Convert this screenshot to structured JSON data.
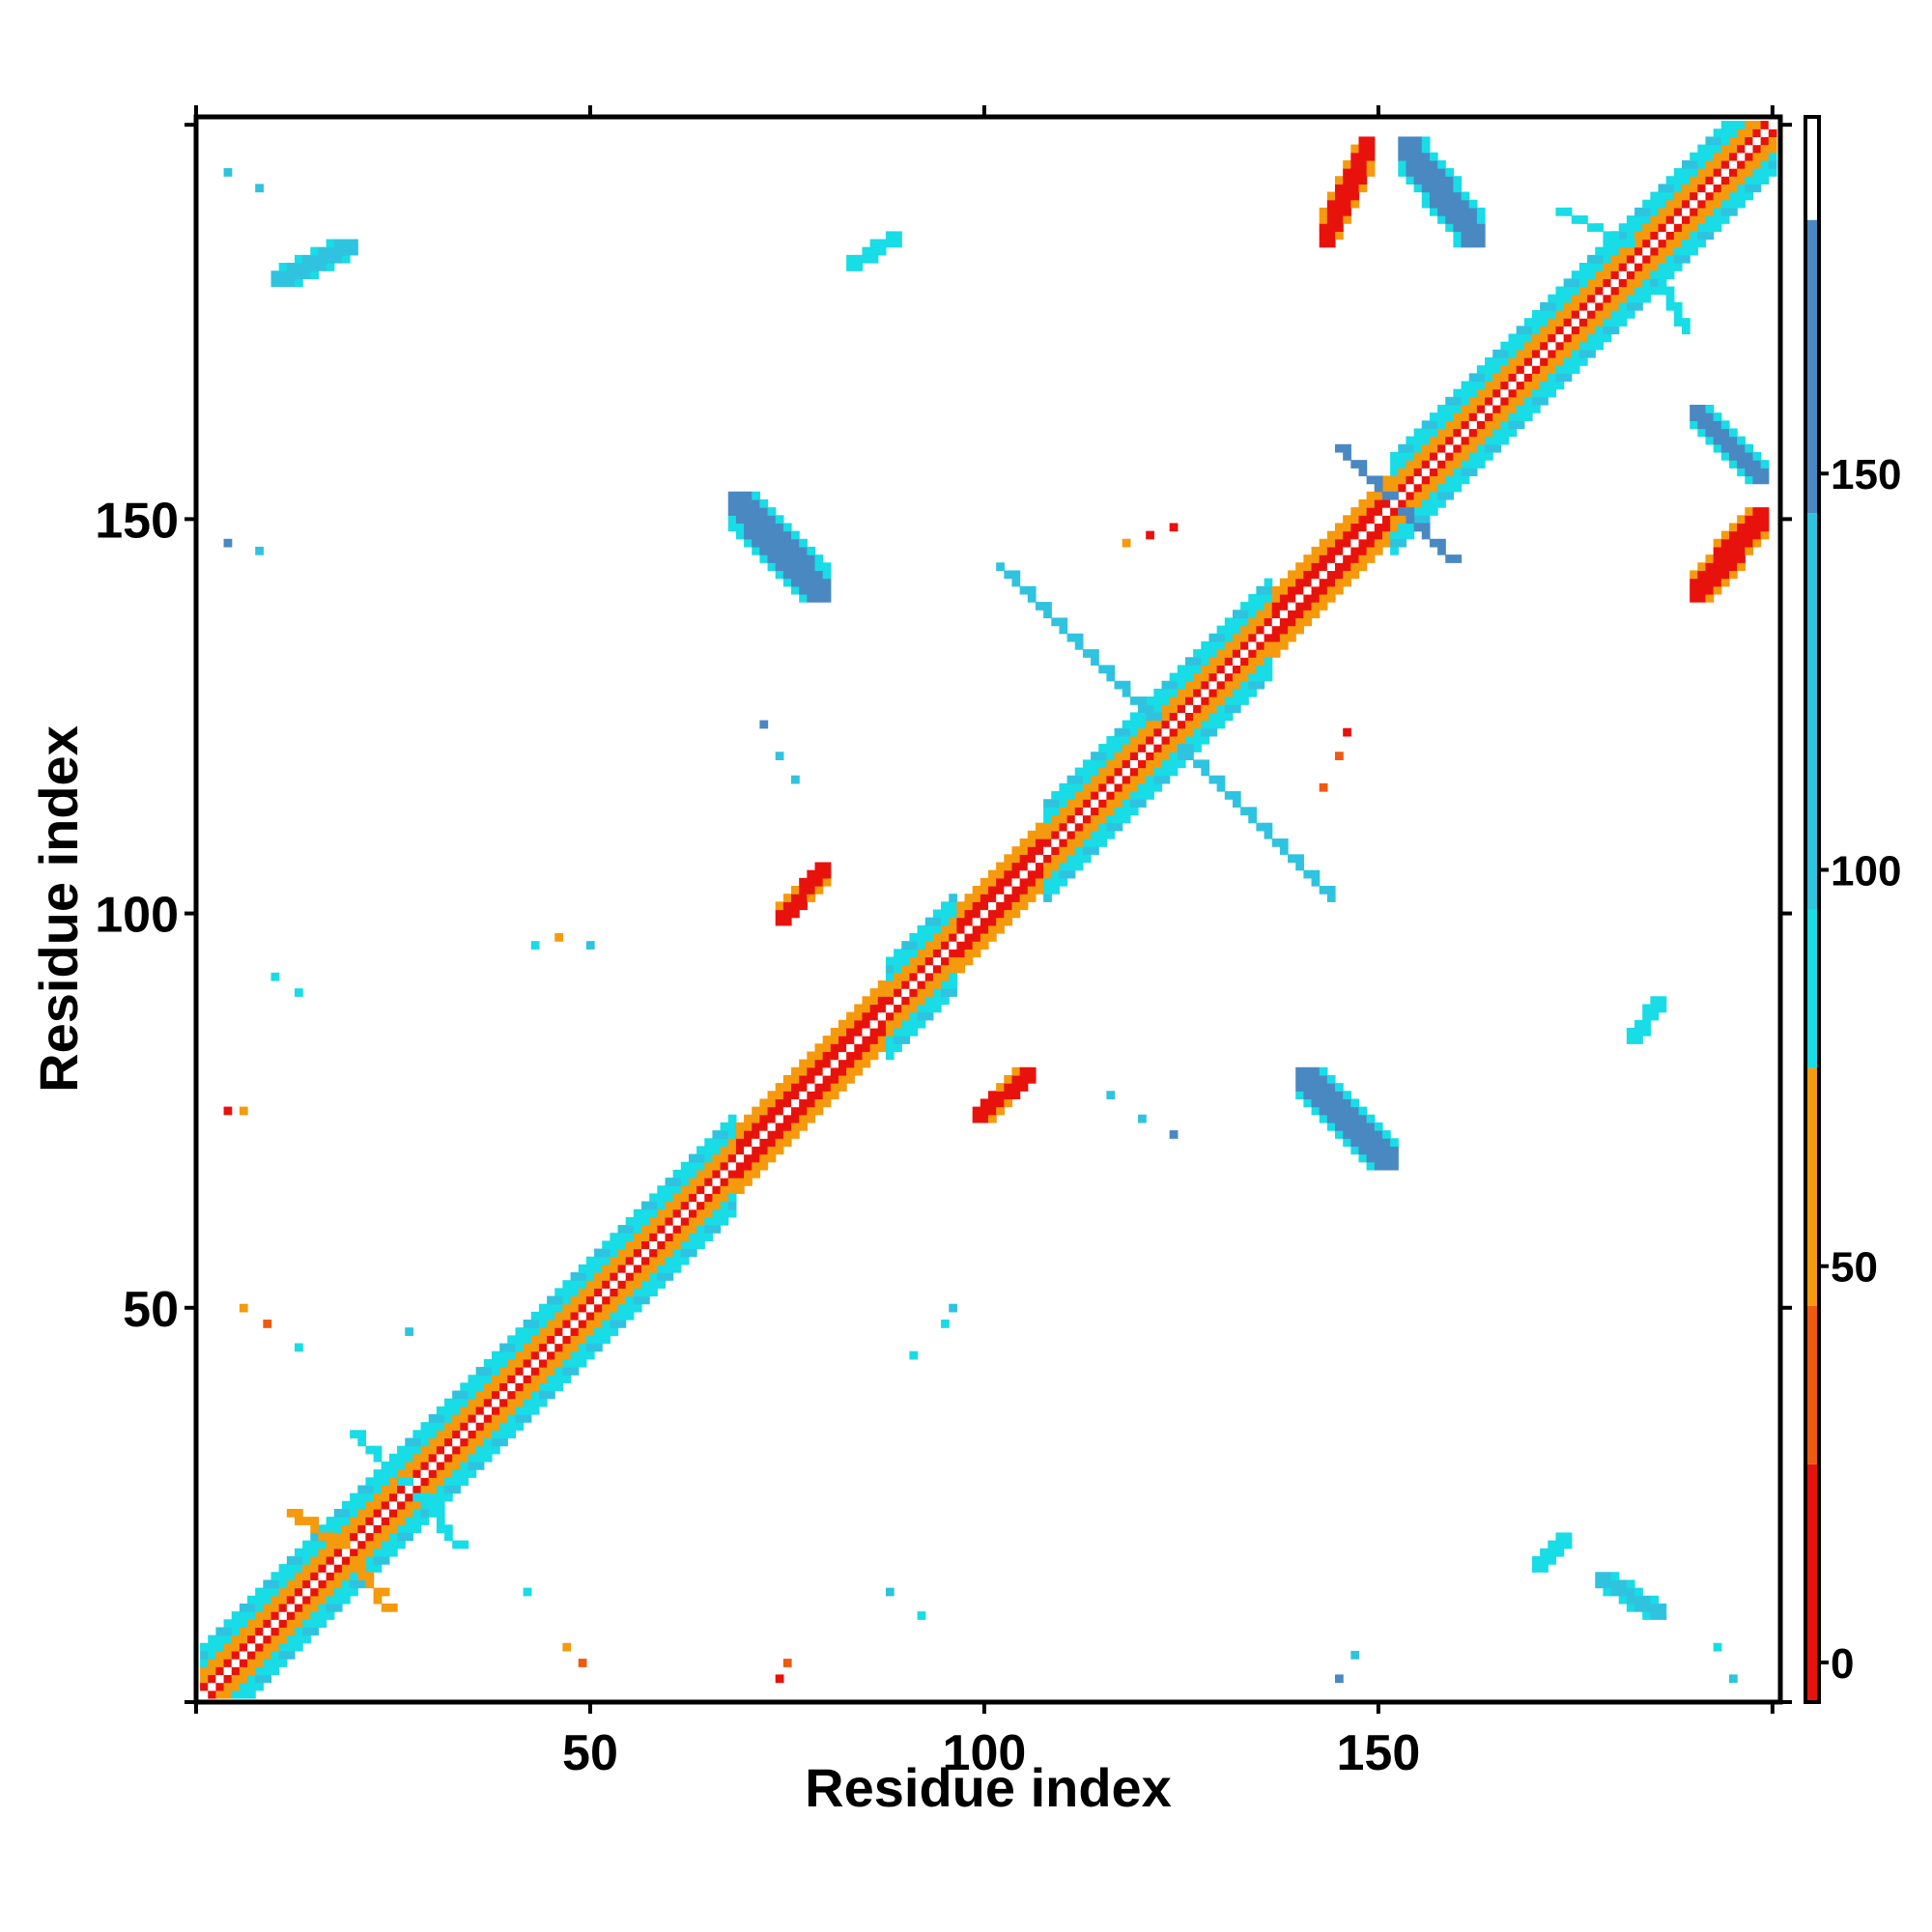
{
  "chart_data": {
    "type": "heatmap",
    "title": "",
    "xlabel": "Residue index",
    "ylabel": "Residue index",
    "xlim": [
      0,
      201
    ],
    "ylim": [
      0,
      201
    ],
    "x_ticks": [
      50,
      100,
      150
    ],
    "y_ticks": [
      50,
      100,
      150
    ],
    "colorbar": {
      "range": [
        -5,
        195
      ],
      "ticks": [
        0,
        50,
        100,
        150
      ],
      "bins": [
        {
          "from": -5,
          "to": 25,
          "color": "#e8120c"
        },
        {
          "from": 25,
          "to": 45,
          "color": "#ee5a10"
        },
        {
          "from": 45,
          "to": 75,
          "color": "#f59a0d"
        },
        {
          "from": 75,
          "to": 95,
          "color": "#18dce6"
        },
        {
          "from": 95,
          "to": 145,
          "color": "#2fc3df"
        },
        {
          "from": 145,
          "to": 182,
          "color": "#4a88c2"
        },
        {
          "from": 182,
          "to": 195,
          "color": "#ffffff"
        }
      ]
    },
    "diagonal": {
      "start": 1,
      "end": 200,
      "color_sequence": [
        "#ffffff",
        "#e8120c",
        "#f59a0d",
        "#18dce6"
      ]
    },
    "regions": [
      {
        "x": [
          143,
          149
        ],
        "y": [
          185,
          198
        ],
        "color": "#e8120c",
        "orientation": "diag"
      },
      {
        "x": [
          153,
          163
        ],
        "y": [
          185,
          198
        ],
        "color": "#4a88c2",
        "orientation": "anti"
      },
      {
        "x": [
          190,
          199
        ],
        "y": [
          140,
          151
        ],
        "color": "#e8120c",
        "orientation": "diag"
      },
      {
        "x": [
          190,
          199
        ],
        "y": [
          155,
          164
        ],
        "color": "#4a88c2",
        "orientation": "anti"
      },
      {
        "x": [
          68,
          80
        ],
        "y": [
          140,
          153
        ],
        "color": "#4a88c2",
        "orientation": "anti"
      },
      {
        "x": [
          140,
          152
        ],
        "y": [
          68,
          80
        ],
        "color": "#4a88c2",
        "orientation": "anti"
      },
      {
        "x": [
          74,
          80
        ],
        "y": [
          99,
          106
        ],
        "color": "#e8120c",
        "orientation": "diag"
      },
      {
        "x": [
          99,
          106
        ],
        "y": [
          74,
          80
        ],
        "color": "#e8120c",
        "orientation": "diag"
      },
      {
        "x": [
          10,
          20
        ],
        "y": [
          180,
          185
        ],
        "color": "#2fc3df",
        "orientation": "diag"
      },
      {
        "x": [
          83,
          89
        ],
        "y": [
          182,
          186
        ],
        "color": "#18dce6",
        "orientation": "diag"
      },
      {
        "x": [
          182,
          186
        ],
        "y": [
          84,
          89
        ],
        "color": "#18dce6",
        "orientation": "diag"
      },
      {
        "x": [
          178,
          186
        ],
        "y": [
          11,
          16
        ],
        "color": "#2fc3df",
        "orientation": "anti"
      },
      {
        "x": [
          170,
          174
        ],
        "y": [
          17,
          21
        ],
        "color": "#18dce6",
        "orientation": "diag"
      }
    ],
    "scatter": [
      {
        "x": 4,
        "y": 194,
        "color": "#2fc3df"
      },
      {
        "x": 8,
        "y": 192,
        "color": "#2fc3df"
      },
      {
        "x": 4,
        "y": 147,
        "color": "#4a88c2"
      },
      {
        "x": 8,
        "y": 146,
        "color": "#2fc3df"
      },
      {
        "x": 4,
        "y": 75,
        "color": "#e8120c"
      },
      {
        "x": 6,
        "y": 75,
        "color": "#f59a0d"
      },
      {
        "x": 10,
        "y": 92,
        "color": "#18dce6"
      },
      {
        "x": 13,
        "y": 90,
        "color": "#18dce6"
      },
      {
        "x": 6,
        "y": 50,
        "color": "#f59a0d"
      },
      {
        "x": 9,
        "y": 48,
        "color": "#ee5a10"
      },
      {
        "x": 13,
        "y": 45,
        "color": "#18dce6"
      },
      {
        "x": 27,
        "y": 47,
        "color": "#2fc3df"
      },
      {
        "x": 43,
        "y": 96,
        "color": "#18dce6"
      },
      {
        "x": 46,
        "y": 97,
        "color": "#f59a0d"
      },
      {
        "x": 50,
        "y": 96,
        "color": "#2fc3df"
      },
      {
        "x": 91,
        "y": 44,
        "color": "#18dce6"
      },
      {
        "x": 95,
        "y": 48,
        "color": "#18dce6"
      },
      {
        "x": 96,
        "y": 50,
        "color": "#2fc3df"
      },
      {
        "x": 74,
        "y": 3,
        "color": "#e8120c"
      },
      {
        "x": 75,
        "y": 5,
        "color": "#ee5a10"
      },
      {
        "x": 47,
        "y": 7,
        "color": "#f59a0d"
      },
      {
        "x": 49,
        "y": 5,
        "color": "#ee5a10"
      },
      {
        "x": 42,
        "y": 14,
        "color": "#18dce6"
      },
      {
        "x": 88,
        "y": 14,
        "color": "#2fc3df"
      },
      {
        "x": 92,
        "y": 11,
        "color": "#18dce6"
      },
      {
        "x": 147,
        "y": 6,
        "color": "#2fc3df"
      },
      {
        "x": 145,
        "y": 3,
        "color": "#4a88c2"
      },
      {
        "x": 193,
        "y": 7,
        "color": "#18dce6"
      },
      {
        "x": 195,
        "y": 3,
        "color": "#2fc3df"
      },
      {
        "x": 118,
        "y": 147,
        "color": "#f59a0d"
      },
      {
        "x": 121,
        "y": 148,
        "color": "#e8120c"
      },
      {
        "x": 124,
        "y": 149,
        "color": "#e8120c"
      },
      {
        "x": 146,
        "y": 123,
        "color": "#e8120c"
      },
      {
        "x": 145,
        "y": 120,
        "color": "#ee5a10"
      },
      {
        "x": 143,
        "y": 116,
        "color": "#ee5a10"
      },
      {
        "x": 72,
        "y": 124,
        "color": "#4a88c2"
      },
      {
        "x": 74,
        "y": 120,
        "color": "#2fc3df"
      },
      {
        "x": 76,
        "y": 117,
        "color": "#2fc3df"
      },
      {
        "x": 116,
        "y": 77,
        "color": "#2fc3df"
      },
      {
        "x": 120,
        "y": 74,
        "color": "#2fc3df"
      },
      {
        "x": 124,
        "y": 72,
        "color": "#4a88c2"
      }
    ],
    "branches": [
      {
        "from": [
          121,
          125
        ],
        "to": [
          102,
          144
        ],
        "color": "#2fc3df"
      },
      {
        "from": [
          125,
          121
        ],
        "to": [
          144,
          102
        ],
        "color": "#2fc3df"
      },
      {
        "from": [
          151,
          153
        ],
        "to": [
          145,
          159
        ],
        "color": "#4a88c2"
      },
      {
        "from": [
          153,
          151
        ],
        "to": [
          159,
          145
        ],
        "color": "#4a88c2"
      },
      {
        "from": [
          181,
          185
        ],
        "to": [
          173,
          189
        ],
        "color": "#18dce6"
      },
      {
        "from": [
          185,
          181
        ],
        "to": [
          189,
          174
        ],
        "color": "#18dce6"
      },
      {
        "from": [
          26,
          28
        ],
        "to": [
          20,
          34
        ],
        "color": "#18dce6"
      },
      {
        "from": [
          28,
          26
        ],
        "to": [
          33,
          20
        ],
        "color": "#18dce6"
      },
      {
        "from": [
          18,
          20
        ],
        "to": [
          12,
          24
        ],
        "color": "#f59a0d"
      },
      {
        "from": [
          20,
          18
        ],
        "to": [
          24,
          12
        ],
        "color": "#f59a0d"
      }
    ]
  }
}
